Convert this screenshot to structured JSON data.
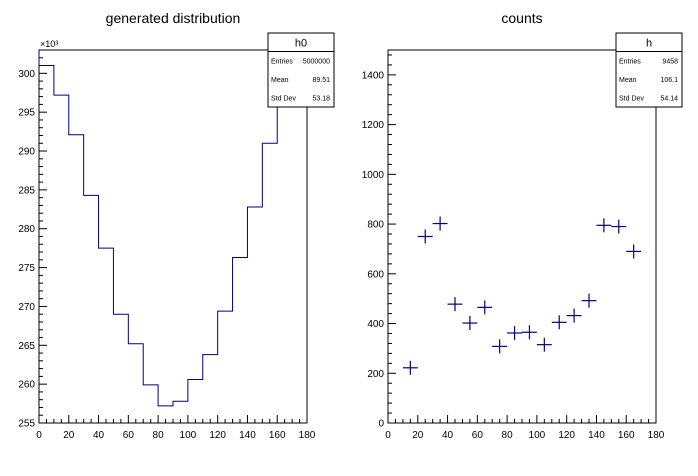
{
  "chart_data": [
    {
      "type": "step-histogram",
      "title": "generated distribution",
      "x_bin_edges": [
        0,
        10,
        20,
        30,
        40,
        50,
        60,
        70,
        80,
        90,
        100,
        110,
        120,
        130,
        140,
        150,
        160,
        170,
        180
      ],
      "values": [
        301000,
        297200,
        292100,
        284300,
        277500,
        269000,
        265200,
        259900,
        257200,
        257800,
        260600,
        263800,
        269400,
        276300,
        282800,
        291000,
        297200,
        301000
      ],
      "xlim": [
        0,
        180
      ],
      "ylim": [
        255000,
        303000
      ],
      "x_ticks": [
        "0",
        "20",
        "40",
        "60",
        "80",
        "100",
        "120",
        "140",
        "160",
        "180"
      ],
      "y_ticks": [
        "255",
        "260",
        "265",
        "270",
        "275",
        "280",
        "285",
        "290",
        "295",
        "300"
      ],
      "y_multiplier": "×10³",
      "line_color": "#000080",
      "stats": {
        "name": "h0",
        "rows": [
          {
            "label": "Entries",
            "value": "5000000"
          },
          {
            "label": "Mean",
            "value": "89.51"
          },
          {
            "label": "Std Dev",
            "value": "53.18"
          }
        ]
      }
    },
    {
      "type": "scatter",
      "title": "counts",
      "x": [
        15,
        25,
        35,
        45,
        55,
        65,
        75,
        85,
        95,
        105,
        115,
        125,
        135,
        145,
        155,
        165
      ],
      "y": [
        222,
        750,
        802,
        478,
        402,
        465,
        308,
        362,
        365,
        315,
        405,
        432,
        492,
        795,
        790,
        690
      ],
      "x_half_width": 5,
      "xlim": [
        0,
        180
      ],
      "ylim": [
        0,
        1500
      ],
      "x_ticks": [
        "0",
        "20",
        "40",
        "60",
        "80",
        "100",
        "120",
        "140",
        "160",
        "180"
      ],
      "y_ticks": [
        "0",
        "200",
        "400",
        "600",
        "800",
        "1000",
        "1200",
        "1400"
      ],
      "marker_color": "#000080",
      "stats": {
        "name": "h",
        "rows": [
          {
            "label": "Entries",
            "value": "9458"
          },
          {
            "label": "Mean",
            "value": "106.1"
          },
          {
            "label": "Std Dev",
            "value": "54.14"
          }
        ]
      }
    }
  ]
}
